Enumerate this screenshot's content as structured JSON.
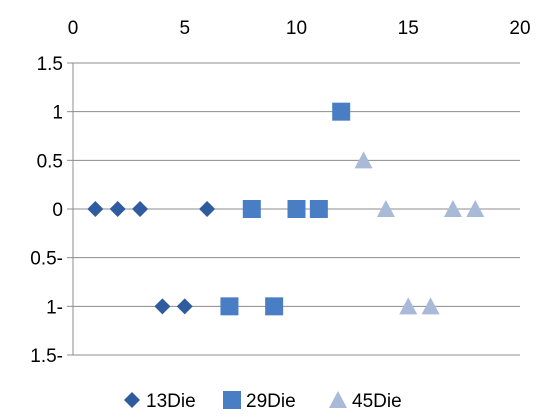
{
  "chart_data": {
    "type": "scatter",
    "xlim": [
      0,
      20
    ],
    "ylim": [
      -1.5,
      1.5
    ],
    "x_axis_position": "top",
    "x_ticks": [
      0,
      5,
      10,
      15,
      20
    ],
    "x_tick_labels": [
      "0",
      "5",
      "10",
      "15",
      "20"
    ],
    "y_ticks": [
      1.5,
      1,
      0.5,
      0,
      -0.5,
      -1,
      -1.5
    ],
    "y_tick_labels": [
      "1.5",
      "1",
      "0.5",
      "0",
      "0.5-",
      "1-",
      "1.5-"
    ],
    "grid": {
      "horizontal": true,
      "vertical": false
    },
    "legend": {
      "position": "bottom"
    },
    "series": [
      {
        "name": "13Die",
        "marker": "diamond",
        "color": "#2e5c9e",
        "points": [
          [
            1,
            0
          ],
          [
            2,
            0
          ],
          [
            3,
            0
          ],
          [
            6,
            0
          ],
          [
            4,
            -1
          ],
          [
            5,
            -1
          ]
        ]
      },
      {
        "name": "29Die",
        "marker": "square",
        "color": "#4a7ec4",
        "points": [
          [
            12,
            1
          ],
          [
            8,
            0
          ],
          [
            10,
            0
          ],
          [
            11,
            0
          ],
          [
            7,
            -1
          ],
          [
            9,
            -1
          ]
        ]
      },
      {
        "name": "45Die",
        "marker": "triangle",
        "color": "#a9b9d8",
        "points": [
          [
            13,
            0.5
          ],
          [
            14,
            0
          ],
          [
            17,
            0
          ],
          [
            18,
            0
          ],
          [
            15,
            -1
          ],
          [
            16,
            -1
          ]
        ]
      }
    ]
  }
}
